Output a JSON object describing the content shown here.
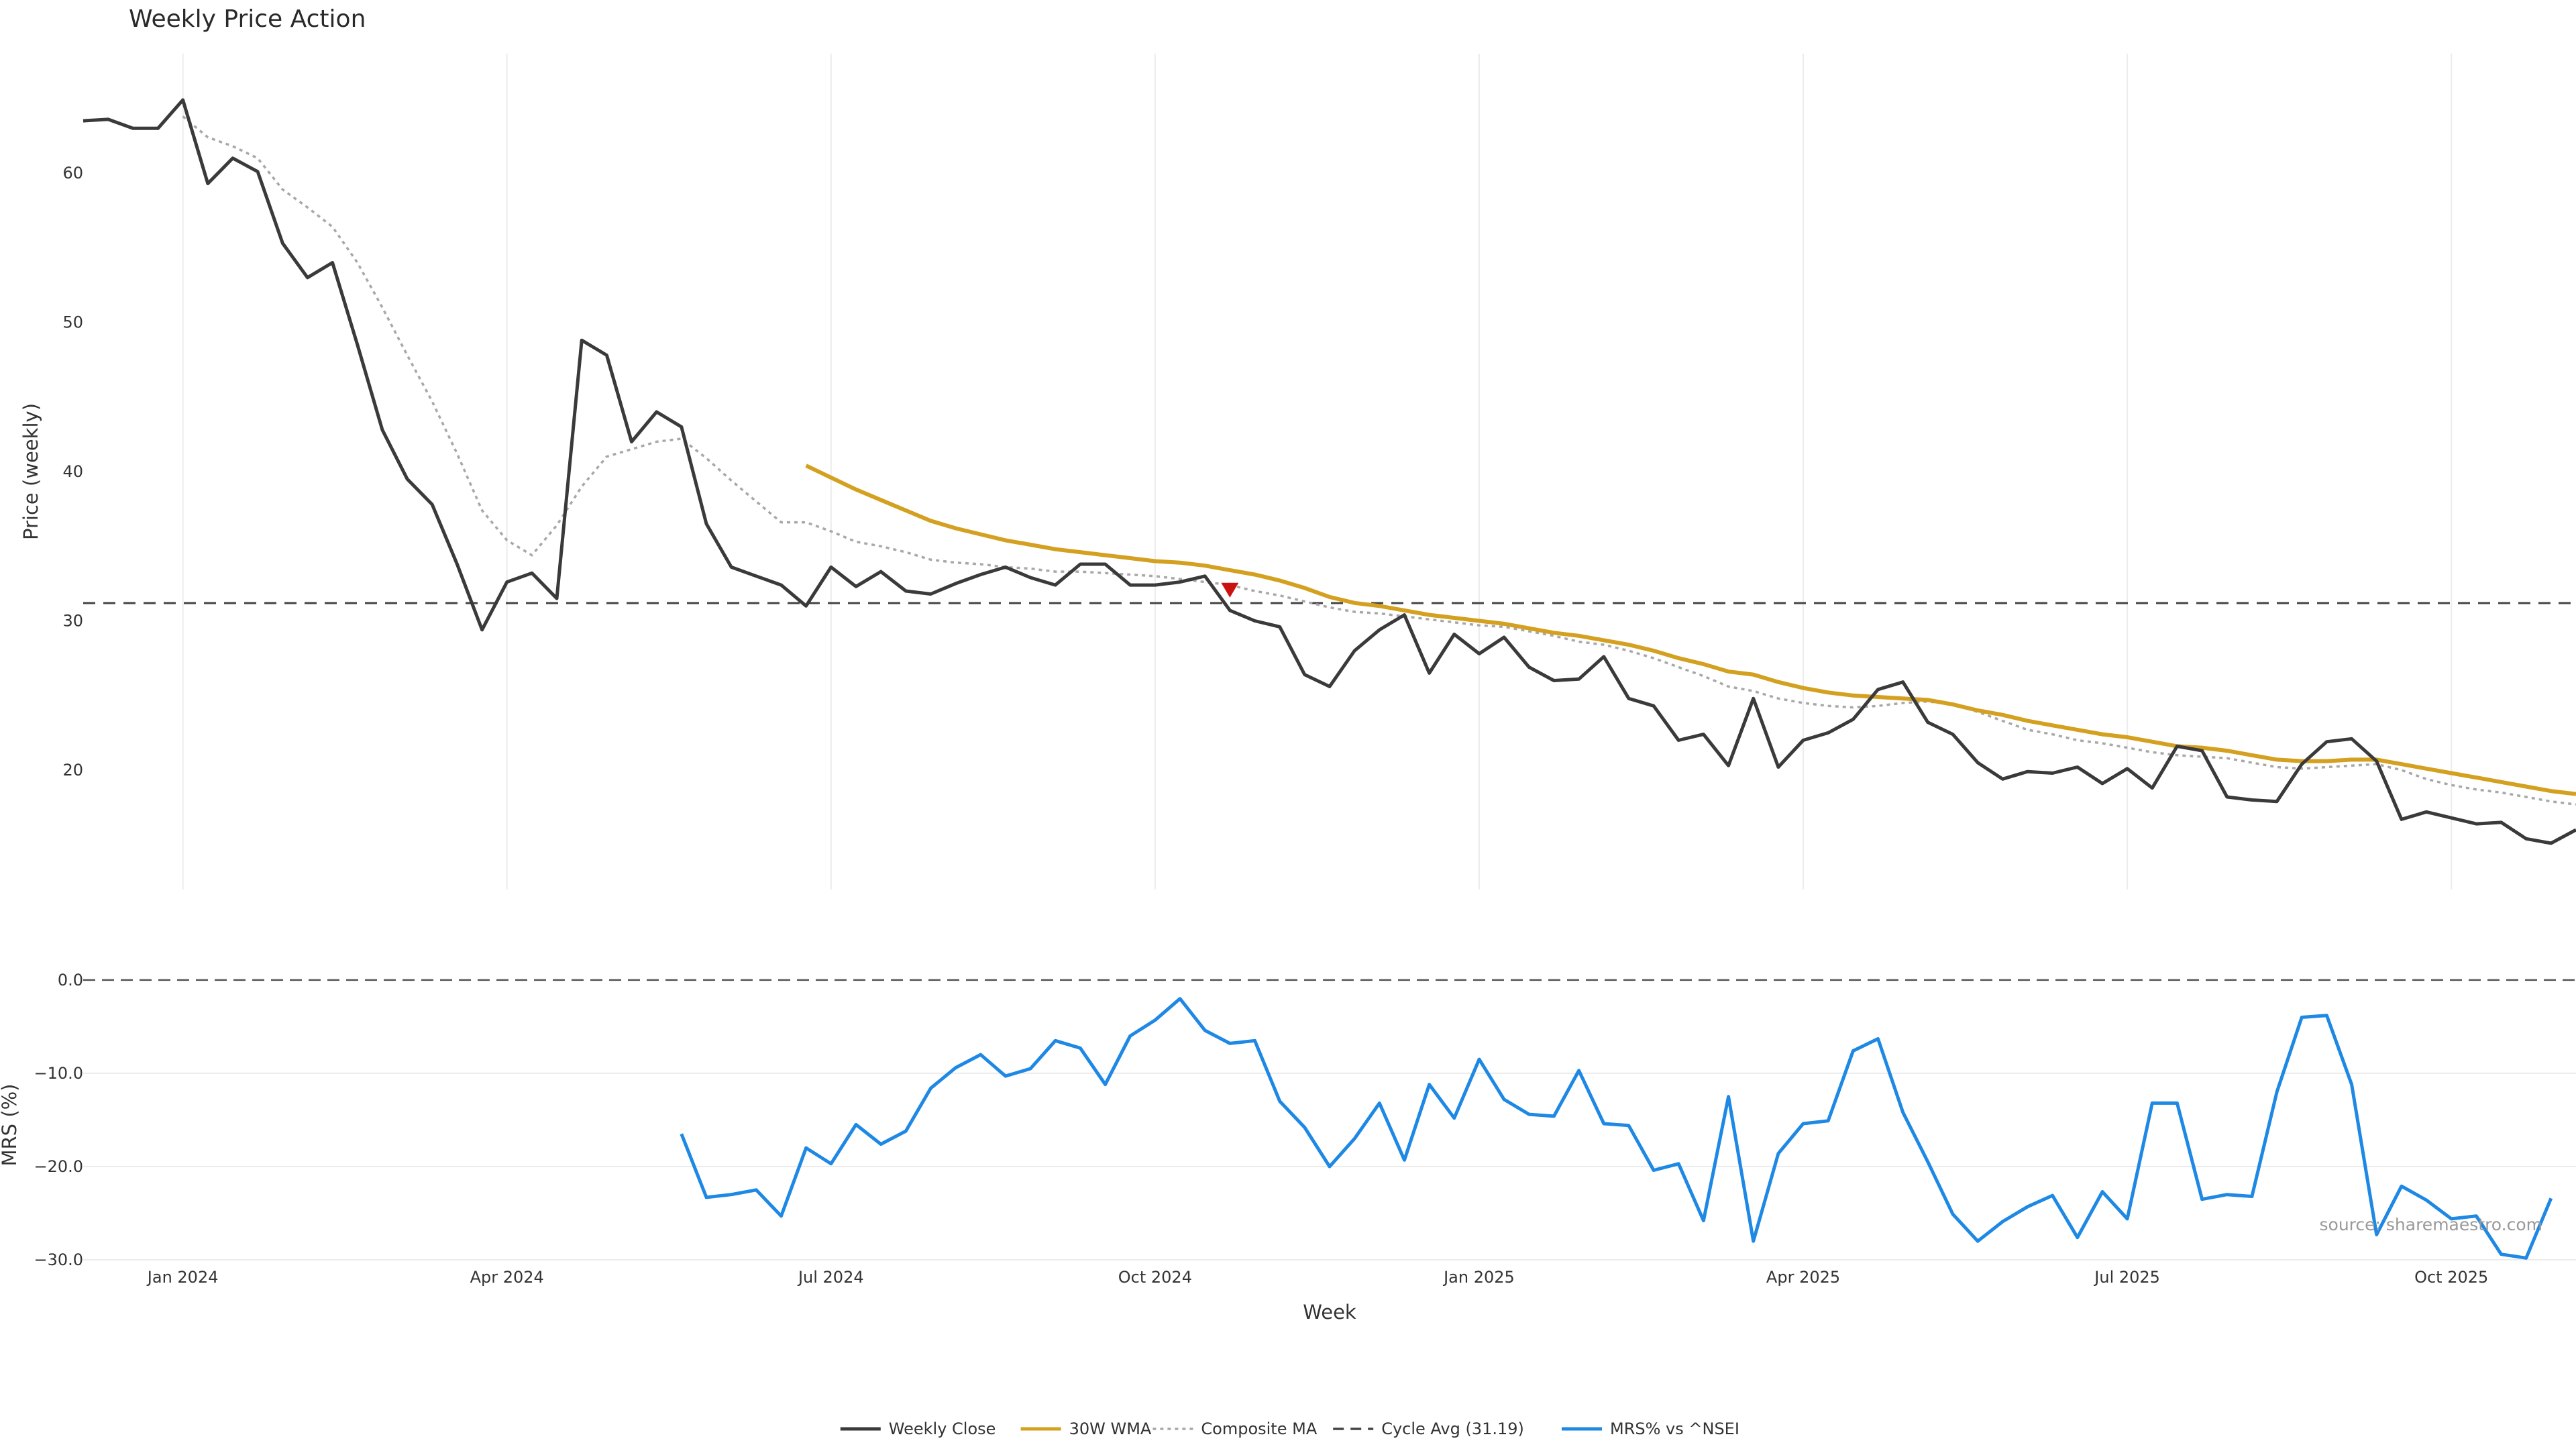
{
  "chart_data": [
    {
      "type": "line",
      "title": "Weekly Price Action",
      "ylabel": "Price (weekly)",
      "xlabel": "",
      "ylim": [
        12,
        68
      ],
      "yticks": [
        "20",
        "30",
        "40",
        "50",
        "60"
      ],
      "yticks_values": [
        20,
        30,
        40,
        50,
        60
      ],
      "grid": "vertical",
      "series": [
        {
          "name": "Weekly Close",
          "color": "#3a3a3a",
          "values": [
            63.5,
            63.6,
            63.0,
            63.0,
            64.9,
            59.3,
            61.0,
            60.1,
            55.3,
            53.0,
            54.0,
            48.5,
            42.8,
            39.5,
            37.8,
            33.8,
            29.4,
            32.6,
            33.2,
            31.5,
            48.8,
            47.8,
            42.0,
            44.0,
            43.0,
            36.5,
            33.6,
            33.0,
            32.4,
            31.0,
            33.6,
            32.3,
            33.3,
            32.0,
            31.8,
            32.5,
            33.1,
            33.6,
            32.9,
            32.4,
            33.8,
            33.8,
            32.4,
            32.4,
            32.6,
            33.0,
            30.7,
            30.0,
            29.6,
            26.4,
            25.6,
            28.0,
            29.4,
            30.4,
            26.5,
            29.1,
            27.8,
            28.9,
            26.9,
            26.0,
            26.1,
            27.6,
            24.8,
            24.3,
            22.0,
            22.4,
            20.3,
            24.8,
            20.2,
            22.0,
            22.5,
            23.4,
            25.4,
            25.9,
            23.2,
            22.4,
            20.5,
            19.4,
            19.9,
            19.8,
            20.2,
            19.1,
            20.1,
            18.8,
            21.6,
            21.3,
            18.2,
            18.0,
            17.9,
            20.4,
            21.9,
            22.1,
            20.6,
            16.7,
            17.2,
            16.8,
            16.4,
            16.5,
            15.4,
            15.1,
            16.0
          ]
        },
        {
          "name": "30W WMA",
          "color": "#d4a020",
          "values": [
            null,
            null,
            null,
            null,
            null,
            null,
            null,
            null,
            null,
            null,
            null,
            null,
            null,
            null,
            null,
            null,
            null,
            null,
            null,
            null,
            null,
            null,
            null,
            null,
            null,
            null,
            null,
            null,
            null,
            40.4,
            39.6,
            38.8,
            38.1,
            37.4,
            36.7,
            36.2,
            35.8,
            35.4,
            35.1,
            34.8,
            34.6,
            34.4,
            34.2,
            34.0,
            33.9,
            33.7,
            33.4,
            33.1,
            32.7,
            32.2,
            31.6,
            31.2,
            31.0,
            30.7,
            30.4,
            30.2,
            30.0,
            29.8,
            29.5,
            29.2,
            29.0,
            28.7,
            28.4,
            28.0,
            27.5,
            27.1,
            26.6,
            26.4,
            25.9,
            25.5,
            25.2,
            25.0,
            24.9,
            24.8,
            24.7,
            24.4,
            24.0,
            23.7,
            23.3,
            23.0,
            22.7,
            22.4,
            22.2,
            21.9,
            21.6,
            21.5,
            21.3,
            21.0,
            20.7,
            20.6,
            20.6,
            20.7,
            20.7,
            20.4,
            20.1,
            19.8,
            19.5,
            19.2,
            18.9,
            18.6,
            18.4
          ]
        },
        {
          "name": "Composite MA",
          "color": "#a8a8a8",
          "values": [
            null,
            null,
            null,
            null,
            63.8,
            62.4,
            61.8,
            61.0,
            58.9,
            57.7,
            56.4,
            54.0,
            51.0,
            47.8,
            44.7,
            41.2,
            37.4,
            35.4,
            34.4,
            36.4,
            39.0,
            41.0,
            41.5,
            42.0,
            42.2,
            40.9,
            39.4,
            38.0,
            36.6,
            36.6,
            36.0,
            35.3,
            35.0,
            34.6,
            34.1,
            33.9,
            33.8,
            33.6,
            33.5,
            33.3,
            33.3,
            33.2,
            33.1,
            33.0,
            32.8,
            32.6,
            32.4,
            32.0,
            31.7,
            31.3,
            30.9,
            30.6,
            30.5,
            30.3,
            30.1,
            29.9,
            29.7,
            29.6,
            29.3,
            29.0,
            28.6,
            28.4,
            28.0,
            27.5,
            26.9,
            26.3,
            25.6,
            25.3,
            24.8,
            24.5,
            24.3,
            24.2,
            24.3,
            24.5,
            24.6,
            24.4,
            23.9,
            23.3,
            22.7,
            22.4,
            22.0,
            21.8,
            21.5,
            21.2,
            21.0,
            20.9,
            20.8,
            20.5,
            20.2,
            20.1,
            20.2,
            20.3,
            20.4,
            20.0,
            19.4,
            19.0,
            18.7,
            18.5,
            18.2,
            17.9,
            17.7
          ]
        },
        {
          "name": "Cycle Avg (31.19)",
          "color": "#444444",
          "value": 31.19
        }
      ],
      "marker": {
        "shape": "down-triangle",
        "color": "#cc1111",
        "week_index": 46,
        "y": 32.1
      }
    },
    {
      "type": "line",
      "title": "",
      "xlabel": "Week",
      "ylabel": "MRS (%)",
      "ylim": [
        -30.5,
        1.5
      ],
      "yticks": [
        "0.0",
        "−10.0",
        "−20.0",
        "−30.0"
      ],
      "yticks_values": [
        0,
        -10,
        -20,
        -30
      ],
      "reference_line": 0,
      "series": [
        {
          "name": "MRS% vs ^NSEI",
          "color": "#1e88e5",
          "values": [
            null,
            null,
            null,
            null,
            null,
            null,
            null,
            null,
            null,
            null,
            null,
            null,
            null,
            null,
            null,
            null,
            null,
            null,
            null,
            null,
            null,
            null,
            null,
            null,
            -16.5,
            -23.3,
            -23.0,
            -22.5,
            -25.3,
            -18.0,
            -19.7,
            -15.5,
            -17.6,
            -16.2,
            -11.6,
            -9.4,
            -8.0,
            -10.3,
            -9.5,
            -6.5,
            -7.3,
            -11.2,
            -6.0,
            -4.3,
            -2.0,
            -5.4,
            -6.8,
            -6.5,
            -13.0,
            -15.8,
            -20.0,
            -17.0,
            -13.2,
            -19.3,
            -11.2,
            -14.8,
            -8.5,
            -12.8,
            -14.4,
            -14.6,
            -9.7,
            -15.4,
            -15.6,
            -20.4,
            -19.7,
            -25.8,
            -12.5,
            -28.0,
            -18.6,
            -15.4,
            -15.1,
            -7.6,
            -6.3,
            -14.2,
            -19.5,
            -25.1,
            -28.0,
            -25.9,
            -24.3,
            -23.1,
            -27.6,
            -22.7,
            -25.6,
            -13.2,
            -13.2,
            -23.5,
            -23.0,
            -23.2,
            -12.0,
            -4.0,
            -3.8,
            -11.2,
            -27.3,
            -22.1,
            -23.6,
            -25.6,
            -25.3,
            -29.4,
            -29.8,
            -23.4
          ]
        }
      ]
    }
  ],
  "x_axis": {
    "label": "Week",
    "tick_labels": [
      "Jan 2024",
      "Apr 2024",
      "Jul 2024",
      "Oct 2024",
      "Jan 2025",
      "Apr 2025",
      "Jul 2025",
      "Oct 2025"
    ],
    "tick_week_index": [
      4,
      17,
      30,
      43,
      56,
      69,
      82,
      95
    ]
  },
  "legend": {
    "position": "bottom-center",
    "items": [
      {
        "label": "Weekly Close",
        "style": "solid",
        "color": "#3a3a3a"
      },
      {
        "label": "30W WMA",
        "style": "solid",
        "color": "#d4a020"
      },
      {
        "label": "Composite MA",
        "style": "dotted",
        "color": "#a8a8a8"
      },
      {
        "label": "Cycle Avg (31.19)",
        "style": "dashed",
        "color": "#444444"
      },
      {
        "label": "MRS% vs ^NSEI",
        "style": "solid",
        "color": "#1e88e5"
      }
    ]
  },
  "source_text": "source: sharemaestro.com"
}
